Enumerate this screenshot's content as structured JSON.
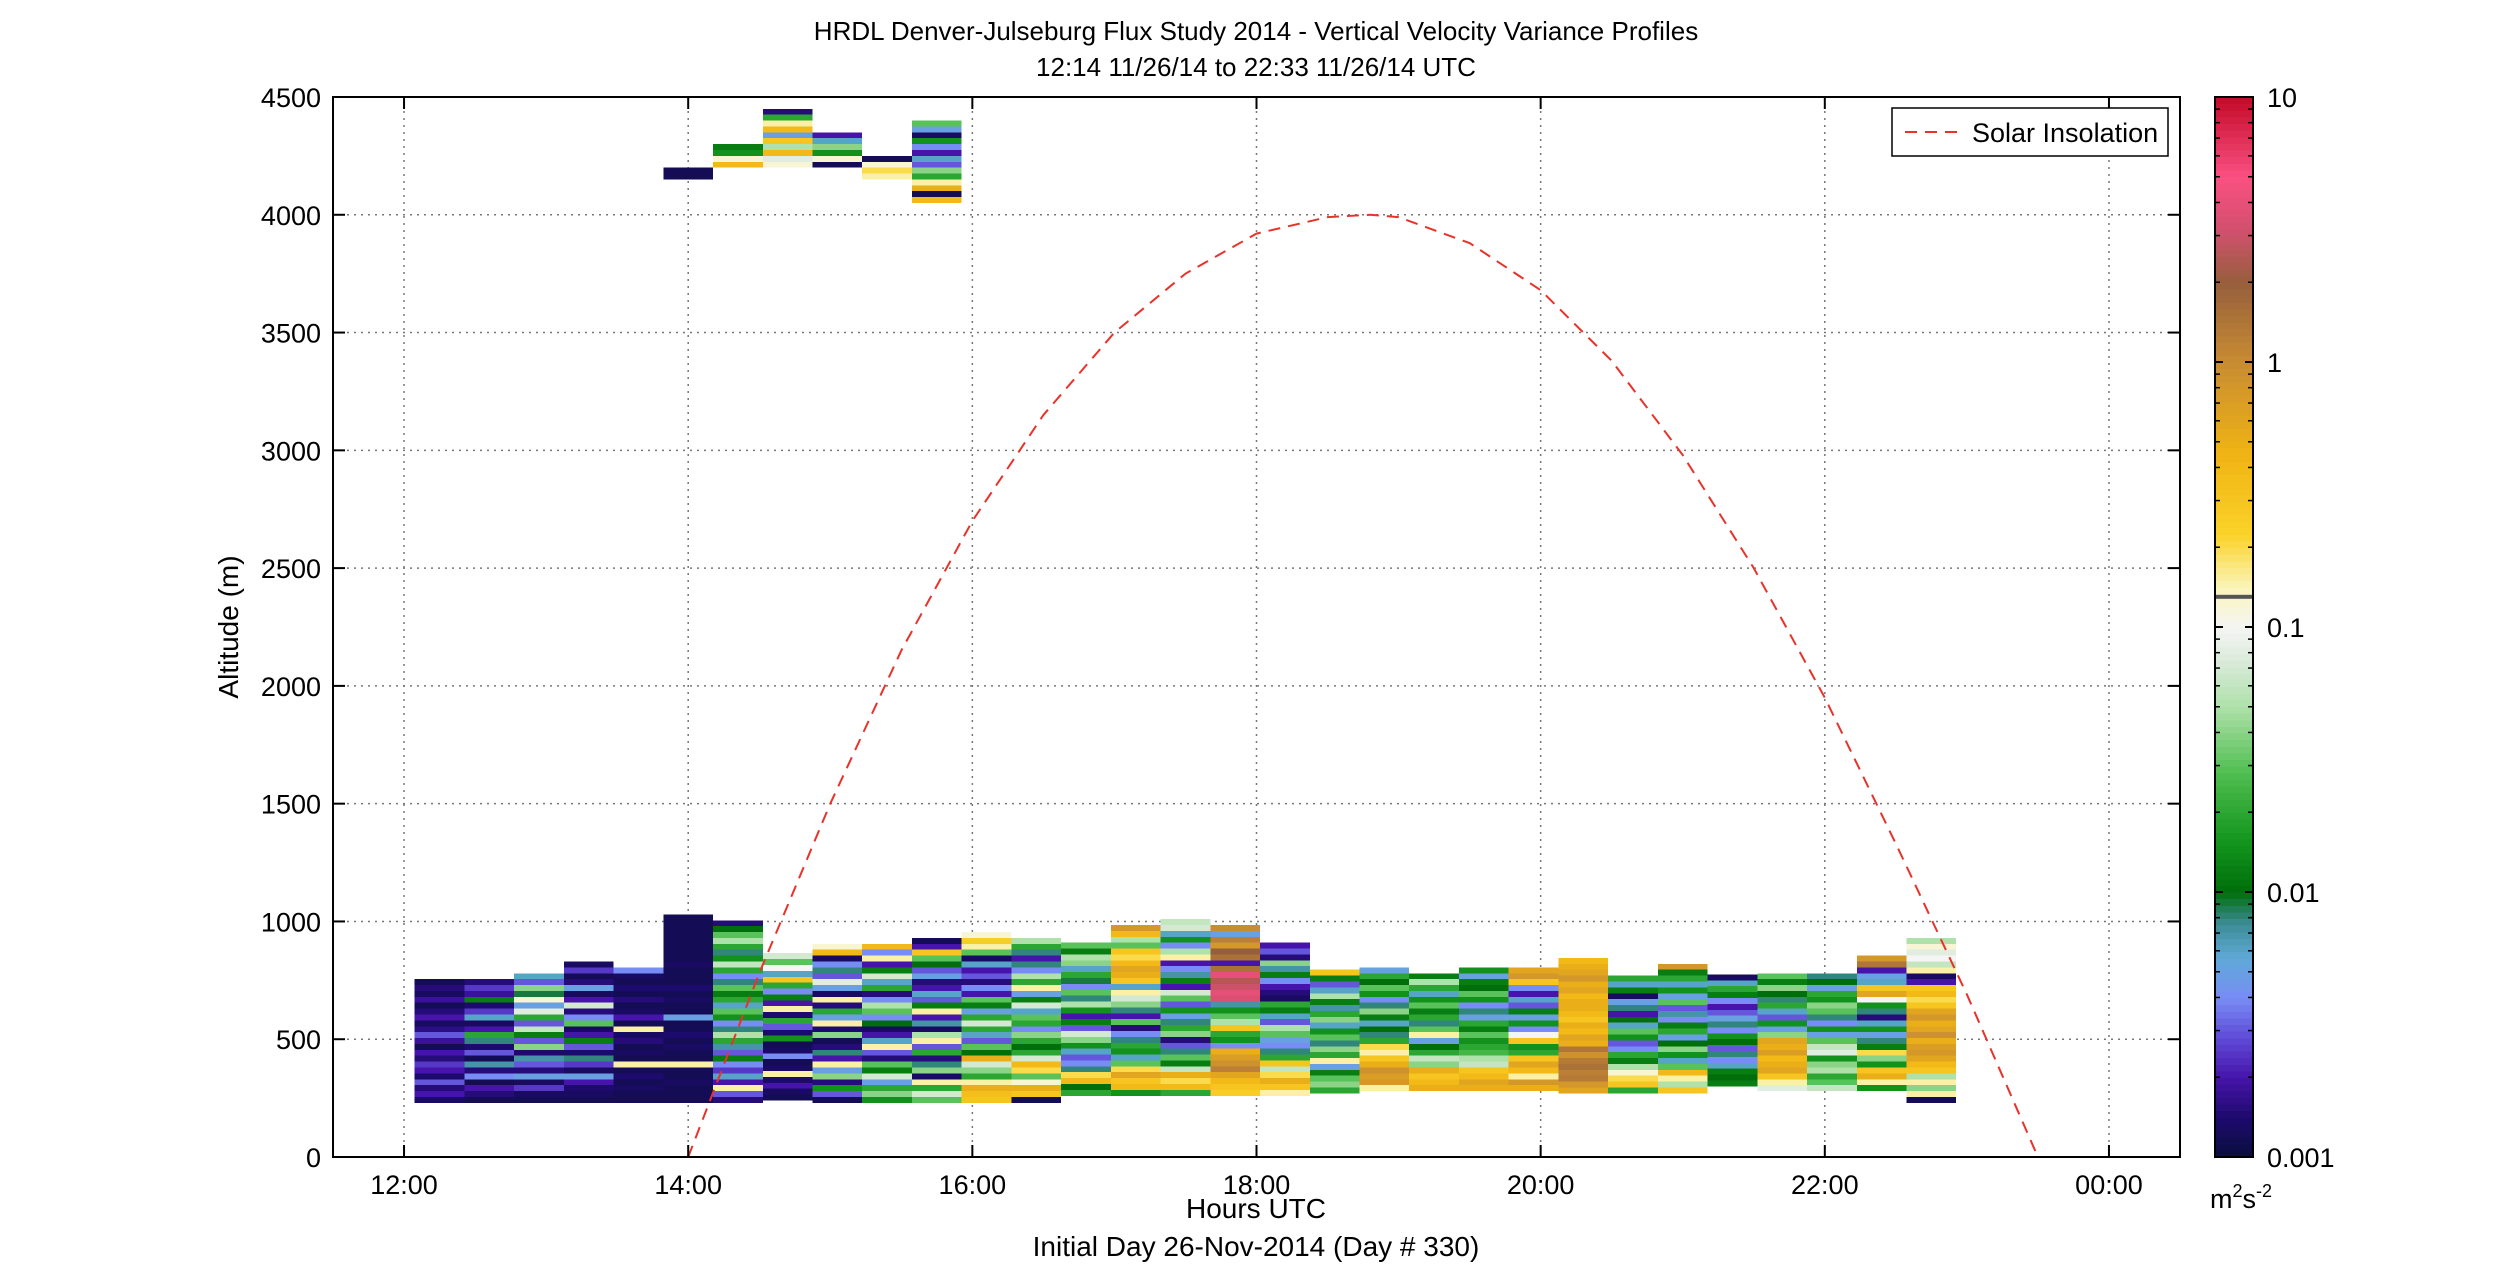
{
  "chart_data": {
    "type": "heatmap",
    "title": "HRDL Denver-Julseburg Flux Study 2014 - Vertical Velocity Variance Profiles",
    "subtitle": "12:14 11/26/14 to 22:33 11/26/14  UTC",
    "xlabel": "Hours UTC",
    "xlabel2": "Initial Day 26-Nov-2014 (Day # 330)",
    "ylabel": "Altitude (m)",
    "xlim": [
      11.5,
      24.5
    ],
    "ylim": [
      0,
      4500
    ],
    "x_ticks": [
      12,
      14,
      16,
      18,
      20,
      22,
      24
    ],
    "x_tick_labels": [
      "12:00",
      "14:00",
      "16:00",
      "18:00",
      "20:00",
      "22:00",
      "00:00"
    ],
    "y_ticks": [
      0,
      500,
      1000,
      1500,
      2000,
      2500,
      3000,
      3500,
      4000,
      4500
    ],
    "y_tick_labels": [
      "0",
      "500",
      "1000",
      "1500",
      "2000",
      "2500",
      "3000",
      "3500",
      "4000",
      "4500"
    ],
    "grid": true,
    "legend": {
      "position": "top-right",
      "entries": [
        "Solar Insolation"
      ]
    },
    "colorbar": {
      "scale": "log",
      "range": [
        0.001,
        10
      ],
      "ticks": [
        0.001,
        0.01,
        0.1,
        1,
        10
      ],
      "tick_labels": [
        "0.001",
        "0.01",
        "0.1",
        "1",
        "10"
      ],
      "unit_main": "m",
      "unit_sup1": "2",
      "unit_mid": "s",
      "unit_sup2": "-2"
    },
    "solar_insolation": {
      "style": "dashed",
      "color": "#e8322a",
      "x": [
        14.0,
        14.5,
        15.0,
        15.5,
        16.0,
        16.5,
        17.0,
        17.5,
        18.0,
        18.5,
        18.8,
        19.0,
        19.5,
        20.0,
        20.5,
        21.0,
        21.5,
        22.0,
        22.5,
        23.0,
        23.5
      ],
      "y": [
        0,
        780,
        1500,
        2150,
        2700,
        3150,
        3500,
        3750,
        3920,
        3990,
        4000,
        3990,
        3880,
        3680,
        3380,
        2980,
        2500,
        1950,
        1330,
        690,
        0
      ]
    },
    "profiles": [
      {
        "t": 12.25,
        "base": 230,
        "values": [
          0.0013,
          0.002,
          0.0015,
          0.003,
          0.0014,
          0.002,
          0.0025,
          0.0015,
          0.002,
          0.0012,
          0.0018,
          0.003,
          0.0016,
          0.0013,
          0.002,
          0.0015,
          0.0012,
          0.0018,
          0.0013,
          0.0015,
          0.0012
        ]
      },
      {
        "t": 12.6,
        "base": 230,
        "values": [
          0.0012,
          0.0015,
          0.002,
          0.0012,
          0.004,
          0.0015,
          0.007,
          0.0012,
          0.003,
          0.0014,
          0.008,
          0.02,
          0.002,
          0.0013,
          0.006,
          0.0025,
          0.0014,
          0.012,
          0.0018,
          0.0025,
          0.0015
        ]
      },
      {
        "t": 12.95,
        "base": 230,
        "values": [
          0.0012,
          0.0013,
          0.0025,
          0.0013,
          0.005,
          0.0015,
          0.003,
          0.007,
          0.0014,
          0.04,
          0.003,
          0.012,
          0.06,
          0.003,
          0.02,
          0.08,
          0.005,
          0.12,
          0.009,
          0.04,
          0.003,
          0.006
        ]
      },
      {
        "t": 13.3,
        "base": 230,
        "values": [
          0.0012,
          0.0013,
          0.0014,
          0.002,
          0.005,
          0.0013,
          0.0025,
          0.008,
          0.0014,
          0.003,
          0.012,
          0.002,
          0.0013,
          0.03,
          0.004,
          0.0015,
          0.07,
          0.002,
          0.0013,
          0.005,
          0.0015,
          0.0012,
          0.0025,
          0.0013
        ]
      },
      {
        "t": 13.65,
        "base": 230,
        "values": [
          0.0012,
          0.0012,
          0.0013,
          0.0012,
          0.0014,
          0.0012,
          0.15,
          0.0012,
          0.0013,
          0.0012,
          0.0015,
          0.0013,
          0.15,
          0.0012,
          0.002,
          0.0013,
          0.0012,
          0.0015,
          0.0012,
          0.0014,
          0.0012,
          0.0013,
          0.004
        ]
      },
      {
        "t": 14.0,
        "base": 230,
        "values": [
          0.0012,
          0.0012,
          0.0012,
          0.0013,
          0.0012,
          0.0012,
          0.15,
          0.0012,
          0.0012,
          0.0013,
          0.0012,
          0.0014,
          0.0012,
          0.0012,
          0.005,
          0.0012,
          0.0012,
          0.0013,
          0.0012,
          0.0014,
          0.0012,
          0.0012,
          0.0012,
          0.0013,
          0.0012,
          0.0012,
          0.0012,
          0.0012,
          0.0012,
          0.0012,
          0.0012,
          0.0012
        ]
      },
      {
        "t": 14.35,
        "base": 230,
        "values": [
          0.0015,
          0.003,
          0.15,
          0.002,
          0.006,
          0.0025,
          0.004,
          0.012,
          0.003,
          0.007,
          0.02,
          0.05,
          0.008,
          0.004,
          0.015,
          0.03,
          0.006,
          0.02,
          0.012,
          0.03,
          0.008,
          0.004,
          0.02,
          0.06,
          0.015,
          0.008,
          0.02,
          0.05,
          0.03,
          0.01,
          0.0015
        ]
      },
      {
        "t": 14.7,
        "base": 240,
        "values": [
          0.0012,
          0.0013,
          0.002,
          0.0014,
          0.15,
          0.0013,
          0.0012,
          0.004,
          0.0013,
          0.0012,
          0.015,
          0.0014,
          0.003,
          0.02,
          0.0014,
          0.15,
          0.002,
          0.012,
          0.004,
          0.02,
          0.3,
          0.006,
          0.1,
          0.03,
          0.07
        ]
      },
      {
        "t": 15.05,
        "base": 230,
        "values": [
          0.0012,
          0.003,
          0.015,
          0.0015,
          0.04,
          0.005,
          0.15,
          0.002,
          0.008,
          0.0015,
          0.0012,
          0.04,
          0.0014,
          0.15,
          0.005,
          0.02,
          0.0015,
          0.15,
          0.0013,
          0.005,
          0.08,
          0.003,
          0.008,
          0.004,
          0.0013,
          0.4,
          0.12
        ]
      },
      {
        "t": 15.4,
        "base": 230,
        "values": [
          0.015,
          0.04,
          0.02,
          0.005,
          0.07,
          0.012,
          0.03,
          0.0015,
          0.003,
          0.15,
          0.006,
          0.002,
          0.0013,
          0.01,
          0.004,
          0.03,
          0.05,
          0.004,
          0.0015,
          0.02,
          0.006,
          0.07,
          0.012,
          0.002,
          0.15,
          0.004,
          0.4
        ]
      },
      {
        "t": 15.75,
        "base": 230,
        "values": [
          0.03,
          0.07,
          0.02,
          0.15,
          0.0013,
          0.04,
          0.008,
          0.0015,
          0.02,
          0.003,
          0.15,
          0.05,
          0.0013,
          0.007,
          0.002,
          0.15,
          0.012,
          0.003,
          0.006,
          0.002,
          0.0015,
          0.005,
          0.003,
          0.01,
          0.03,
          0.3,
          0.002,
          0.0012
        ]
      },
      {
        "t": 16.1,
        "base": 230,
        "values": [
          0.3,
          0.35,
          0.5,
          0.15,
          0.02,
          0.04,
          0.07,
          0.5,
          0.01,
          0.03,
          0.003,
          0.006,
          0.02,
          0.07,
          0.02,
          0.005,
          0.012,
          0.03,
          0.002,
          0.004,
          0.0015,
          0.003,
          0.002,
          0.006,
          0.0013,
          0.03,
          0.15,
          0.25,
          0.12
        ]
      },
      {
        "t": 16.45,
        "base": 230,
        "values": [
          0.0012,
          0.3,
          0.5,
          0.12,
          0.03,
          0.2,
          0.4,
          0.07,
          0.02,
          0.01,
          0.02,
          0.04,
          0.004,
          0.02,
          0.03,
          0.006,
          0.07,
          0.012,
          0.005,
          0.15,
          0.02,
          0.05,
          0.004,
          0.008,
          0.002,
          0.008,
          0.02,
          0.05
        ]
      },
      {
        "t": 16.8,
        "base": 260,
        "values": [
          0.02,
          0.01,
          0.4,
          0.2,
          0.008,
          0.004,
          0.003,
          0.006,
          0.015,
          0.04,
          0.07,
          0.003,
          0.012,
          0.002,
          0.015,
          0.05,
          0.008,
          0.03,
          0.004,
          0.009,
          0.02,
          0.006,
          0.04,
          0.05,
          0.012,
          0.03
        ]
      },
      {
        "t": 17.15,
        "base": 260,
        "values": [
          0.015,
          0.4,
          0.3,
          0.6,
          0.2,
          0.03,
          0.006,
          0.015,
          0.02,
          0.008,
          0.004,
          0.0015,
          0.03,
          0.002,
          0.008,
          0.04,
          0.07,
          0.15,
          0.006,
          0.3,
          0.5,
          0.6,
          0.4,
          0.2,
          0.3,
          0.03,
          0.05,
          0.4,
          0.8
        ]
      },
      {
        "t": 17.5,
        "base": 260,
        "values": [
          0.02,
          0.4,
          0.2,
          0.5,
          0.06,
          0.012,
          0.03,
          0.008,
          0.003,
          0.0015,
          0.04,
          0.02,
          0.008,
          0.005,
          0.015,
          0.003,
          0.03,
          0.07,
          0.002,
          0.012,
          0.007,
          0.004,
          0.002,
          0.15,
          0.05,
          0.004,
          0.015,
          0.006,
          0.07,
          0.06
        ]
      },
      {
        "t": 17.85,
        "base": 260,
        "values": [
          0.25,
          0.3,
          0.4,
          0.6,
          1.2,
          0.9,
          0.7,
          0.5,
          0.004,
          0.015,
          0.02,
          0.3,
          0.05,
          0.03,
          0.015,
          0.007,
          3.5,
          4,
          3,
          2.5,
          4,
          1.5,
          0.002,
          1.5,
          2,
          0.8,
          1.2,
          0.005,
          1
        ]
      },
      {
        "t": 18.2,
        "base": 260,
        "values": [
          0.15,
          0.3,
          0.5,
          0.2,
          0.06,
          0.3,
          0.02,
          0.008,
          0.004,
          0.005,
          0.03,
          0.05,
          0.003,
          0.006,
          0.012,
          0.02,
          0.0013,
          0.0015,
          0.002,
          0.004,
          0.012,
          0.007,
          0.04,
          0.0015,
          0.003,
          0.002
        ]
      },
      {
        "t": 18.55,
        "base": 270,
        "values": [
          0.02,
          0.04,
          0.03,
          0.012,
          0.005,
          0.15,
          0.02,
          0.04,
          0.008,
          0.03,
          0.015,
          0.006,
          0.04,
          0.02,
          0.007,
          0.012,
          0.05,
          0.006,
          0.003,
          0.012,
          0.3
        ]
      },
      {
        "t": 18.9,
        "base": 280,
        "values": [
          0.15,
          0.8,
          0.7,
          0.9,
          0.5,
          0.3,
          0.15,
          0.2,
          0.02,
          0.008,
          0.01,
          0.006,
          0.012,
          0.04,
          0.008,
          0.004,
          0.015,
          0.03,
          0.01,
          0.02,
          0.005
        ]
      },
      {
        "t": 19.25,
        "base": 280,
        "values": [
          0.5,
          0.4,
          0.3,
          0.5,
          0.04,
          0.06,
          0.02,
          0.01,
          0.005,
          0.15,
          0.03,
          0.008,
          0.02,
          0.012,
          0.03,
          0.015,
          0.006,
          0.02,
          0.05,
          0.012
        ]
      },
      {
        "t": 19.6,
        "base": 280,
        "values": [
          0.5,
          0.6,
          0.4,
          0.3,
          0.06,
          0.05,
          0.025,
          0.02,
          0.015,
          0.03,
          0.012,
          0.02,
          0.005,
          0.008,
          0.004,
          0.015,
          0.03,
          0.01,
          0.012,
          0.005,
          0.015
        ]
      },
      {
        "t": 19.95,
        "base": 280,
        "values": [
          0.5,
          0.8,
          0.15,
          0.4,
          0.6,
          0.3,
          0.02,
          0.015,
          0.3,
          0.1,
          0.004,
          0.015,
          0.005,
          0.012,
          0.003,
          0.006,
          0.002,
          0.004,
          0.3,
          0.8,
          0.6
        ]
      },
      {
        "t": 20.3,
        "base": 270,
        "values": [
          0.6,
          0.8,
          1.3,
          1.2,
          1.5,
          1.3,
          0.9,
          1.4,
          0.5,
          0.6,
          0.4,
          0.5,
          0.3,
          0.4,
          0.5,
          0.5,
          0.4,
          0.6,
          0.5,
          0.8,
          0.6,
          0.5,
          0.4
        ]
      },
      {
        "t": 20.65,
        "base": 270,
        "values": [
          0.02,
          0.3,
          0.2,
          0.12,
          0.05,
          0.012,
          0.02,
          0.004,
          0.003,
          0.015,
          0.03,
          0.006,
          0.01,
          0.002,
          0.008,
          0.005,
          0.0013,
          0.012,
          0.006,
          0.02
        ]
      },
      {
        "t": 21.0,
        "base": 270,
        "values": [
          0.3,
          0.05,
          0.15,
          0.4,
          0.03,
          0.006,
          0.015,
          0.04,
          0.01,
          0.005,
          0.02,
          0.012,
          0.004,
          0.007,
          0.003,
          0.03,
          0.005,
          0.015,
          0.006,
          0.02,
          0.012,
          0.8
        ]
      },
      {
        "t": 21.35,
        "base": 300,
        "values": [
          0.012,
          0.01,
          0.012,
          0.006,
          0.004,
          0.008,
          0.003,
          0.01,
          0.015,
          0.004,
          0.008,
          0.005,
          0.003,
          0.002,
          0.004,
          0.012,
          0.02,
          0.006,
          0.0013
        ]
      },
      {
        "t": 21.7,
        "base": 280,
        "values": [
          0.08,
          0.15,
          0.3,
          0.6,
          0.5,
          0.4,
          0.7,
          0.5,
          0.6,
          0.04,
          0.005,
          0.015,
          0.003,
          0.006,
          0.02,
          0.008,
          0.01,
          0.04,
          0.012,
          0.03
        ]
      },
      {
        "t": 22.05,
        "base": 280,
        "values": [
          0.06,
          0.03,
          0.02,
          0.05,
          0.04,
          0.015,
          0.08,
          0.06,
          0.03,
          0.005,
          0.015,
          0.004,
          0.008,
          0.03,
          0.04,
          0.015,
          0.02,
          0.005,
          0.01,
          0.008
        ]
      },
      {
        "t": 22.4,
        "base": 280,
        "values": [
          0.015,
          0.15,
          0.5,
          0.3,
          0.015,
          0.04,
          0.2,
          0.012,
          0.008,
          0.005,
          0.015,
          0.006,
          0.0015,
          0.008,
          0.015,
          0.1,
          0.6,
          0.3,
          0.006,
          0.005,
          0.002,
          1.4,
          0.8
        ]
      },
      {
        "t": 22.75,
        "base": 230,
        "values": [
          0.0012,
          0.15,
          0.04,
          0.15,
          0.05,
          0.3,
          0.4,
          0.6,
          0.8,
          0.7,
          0.5,
          0.9,
          0.6,
          0.5,
          0.8,
          0.6,
          0.3,
          0.2,
          0.4,
          0.3,
          0.002,
          0.0013,
          0.15,
          0.06,
          0.1,
          0.08,
          0.12,
          0.05
        ]
      }
    ],
    "upper_profiles": [
      {
        "t": 14.0,
        "base": 4150,
        "values": [
          0.0012,
          0.0012
        ]
      },
      {
        "t": 14.35,
        "base": 4200,
        "values": [
          0.4,
          0.12,
          0.015,
          0.012
        ]
      },
      {
        "t": 14.7,
        "base": 4200,
        "values": [
          0.12,
          0.08,
          0.4,
          0.05,
          0.3,
          0.005,
          0.4,
          0.15,
          0.02,
          0.0015
        ]
      },
      {
        "t": 15.05,
        "base": 4200,
        "values": [
          0.0012,
          0.12,
          0.015,
          0.04,
          0.006,
          0.002
        ]
      },
      {
        "t": 15.4,
        "base": 4150,
        "values": [
          0.15,
          0.2,
          0.12,
          0.0012
        ]
      },
      {
        "t": 15.75,
        "base": 4050,
        "values": [
          0.4,
          0.0012,
          0.5,
          0.15,
          0.02,
          0.04,
          0.003,
          0.006,
          0.002,
          0.004,
          0.015,
          0.0013,
          0.005,
          0.03
        ]
      }
    ]
  }
}
